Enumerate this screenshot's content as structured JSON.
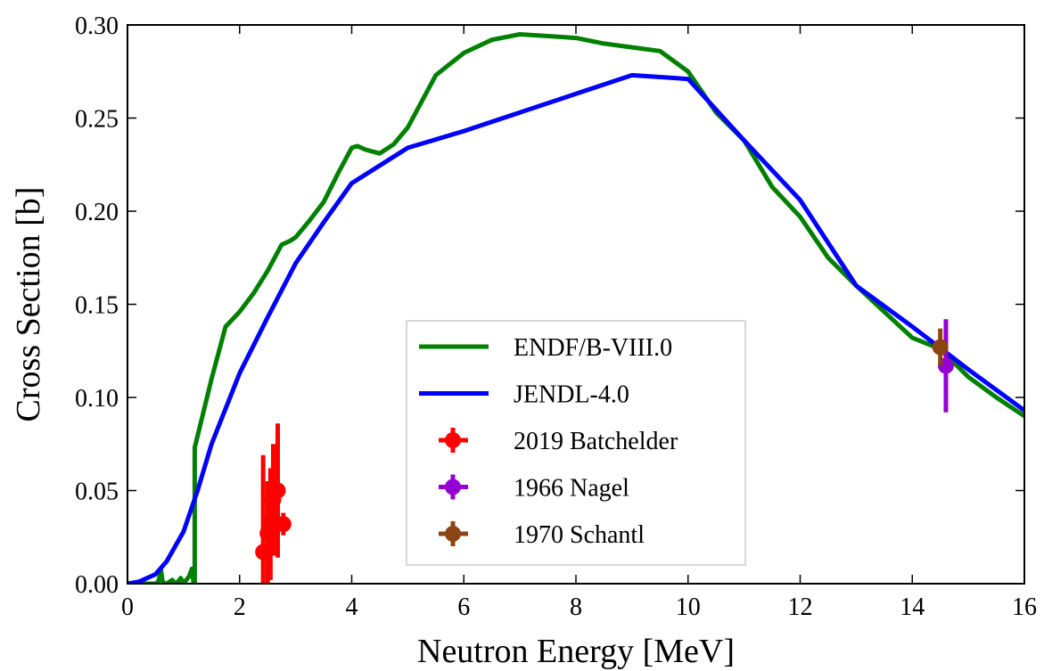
{
  "chart_data": {
    "type": "line",
    "title": "",
    "xlabel": "Neutron Energy [MeV]",
    "ylabel": "Cross Section [b]",
    "xlim": [
      0,
      16
    ],
    "ylim": [
      0,
      0.3
    ],
    "xticks": [
      0,
      2,
      4,
      6,
      8,
      10,
      12,
      14,
      16
    ],
    "xtick_labels": [
      "0",
      "2",
      "4",
      "6",
      "8",
      "10",
      "12",
      "14",
      "16"
    ],
    "yticks": [
      0,
      0.05,
      0.1,
      0.15,
      0.2,
      0.25,
      0.3
    ],
    "ytick_labels": [
      "0.00",
      "0.05",
      "0.10",
      "0.15",
      "0.20",
      "0.25",
      "0.30"
    ],
    "grid": false,
    "legend_position": "bottom-center",
    "series": [
      {
        "name": "ENDF/B-VIII.0",
        "kind": "line",
        "color": "#008000",
        "x": [
          0.0,
          0.5,
          0.55,
          0.6,
          0.62,
          0.65,
          0.7,
          0.8,
          0.85,
          0.9,
          0.95,
          1.0,
          1.05,
          1.1,
          1.15,
          1.18,
          1.2,
          1.2,
          1.5,
          1.75,
          2.0,
          2.25,
          2.5,
          2.75,
          2.9,
          3.0,
          3.25,
          3.5,
          3.75,
          4.0,
          4.1,
          4.25,
          4.5,
          4.75,
          5.0,
          5.5,
          6.0,
          6.5,
          7.0,
          7.5,
          8.0,
          8.5,
          9.0,
          9.5,
          10.0,
          10.5,
          11.0,
          11.5,
          12.0,
          12.5,
          13.0,
          13.5,
          14.0,
          14.5,
          15.0,
          15.5,
          16.0
        ],
        "y": [
          0.0,
          0.0,
          0.001,
          0.007,
          0.002,
          0.0,
          0.0,
          0.002,
          0.0,
          0.001,
          0.003,
          0.0,
          0.002,
          0.004,
          0.008,
          0.0,
          0.0,
          0.073,
          0.11,
          0.138,
          0.146,
          0.156,
          0.168,
          0.182,
          0.184,
          0.186,
          0.195,
          0.205,
          0.22,
          0.234,
          0.235,
          0.233,
          0.231,
          0.236,
          0.245,
          0.273,
          0.285,
          0.292,
          0.295,
          0.294,
          0.293,
          0.29,
          0.288,
          0.286,
          0.275,
          0.253,
          0.238,
          0.213,
          0.197,
          0.175,
          0.16,
          0.146,
          0.132,
          0.126,
          0.111,
          0.1,
          0.09
        ]
      },
      {
        "name": "JENDL-4.0",
        "kind": "line",
        "color": "#0000ff",
        "x": [
          0.0,
          0.2,
          0.5,
          0.7,
          1.0,
          1.25,
          1.5,
          2.0,
          2.5,
          3.0,
          3.5,
          4.0,
          5.0,
          6.0,
          7.0,
          8.0,
          9.0,
          10.0,
          11.0,
          12.0,
          13.0,
          14.0,
          15.0,
          16.0
        ],
        "y": [
          0.0,
          0.001,
          0.005,
          0.012,
          0.028,
          0.05,
          0.075,
          0.113,
          0.143,
          0.172,
          0.194,
          0.215,
          0.234,
          0.243,
          0.253,
          0.263,
          0.273,
          0.271,
          0.238,
          0.206,
          0.16,
          0.138,
          0.115,
          0.093
        ]
      },
      {
        "name": "2019 Batchelder",
        "kind": "errorbar",
        "color": "#ff0000",
        "points": [
          {
            "x": 2.42,
            "y": 0.017,
            "yerr": 0.052,
            "xerr": 0.02
          },
          {
            "x": 2.5,
            "y": 0.027,
            "yerr": 0.028,
            "xerr": 0.02
          },
          {
            "x": 2.55,
            "y": 0.032,
            "yerr": 0.03,
            "xerr": 0.02
          },
          {
            "x": 2.6,
            "y": 0.045,
            "yerr": 0.03,
            "xerr": 0.02
          },
          {
            "x": 2.68,
            "y": 0.05,
            "yerr": 0.036,
            "xerr": 0.02
          },
          {
            "x": 2.78,
            "y": 0.032,
            "yerr": 0.006,
            "xerr": 0.02
          }
        ]
      },
      {
        "name": "1966 Nagel",
        "kind": "errorbar",
        "color": "#9400d3",
        "points": [
          {
            "x": 14.6,
            "y": 0.117,
            "yerr": 0.025,
            "xerr": 0.1
          }
        ]
      },
      {
        "name": "1970 Schantl",
        "kind": "errorbar",
        "color": "#8b4513",
        "points": [
          {
            "x": 14.5,
            "y": 0.127,
            "yerr": 0.01,
            "xerr": 0.1
          }
        ]
      }
    ]
  }
}
